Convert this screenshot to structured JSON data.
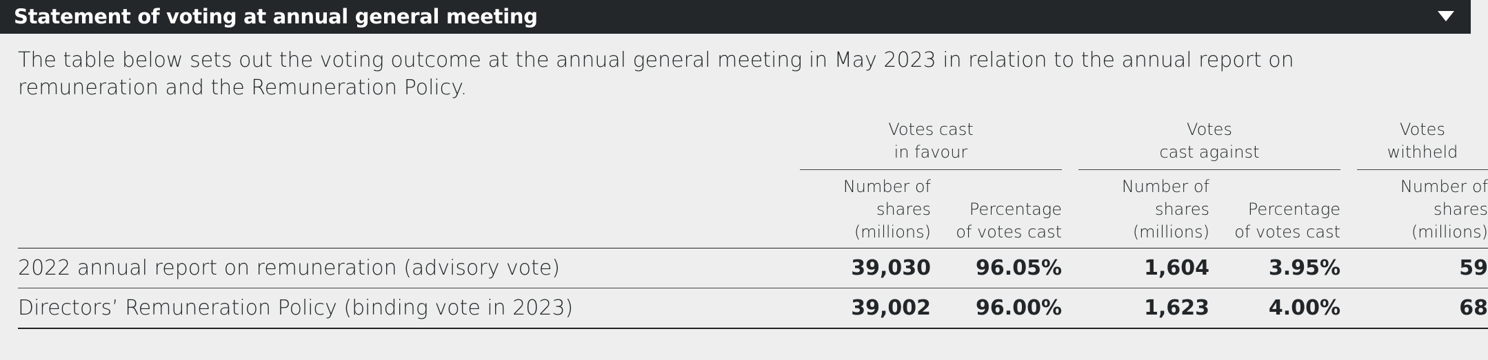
{
  "header": {
    "title": "Statement of voting at annual general meeting",
    "toggle_icon": "chevron-down-icon"
  },
  "intro": "The table below sets out the voting outcome at the annual general meeting in May 2023 in relation to the annual report on remuneration and the Remuneration Policy.",
  "table": {
    "groups": [
      {
        "line1": "Votes cast",
        "line2": "in favour"
      },
      {
        "line1": "Votes",
        "line2": "cast against"
      },
      {
        "line1": "Votes",
        "line2": "withheld"
      }
    ],
    "subheaders": [
      {
        "l1": "Number of",
        "l2": "shares",
        "l3": "(millions)"
      },
      {
        "l1": "",
        "l2": "Percentage",
        "l3": "of votes cast"
      },
      {
        "l1": "Number of",
        "l2": "shares",
        "l3": "(millions)"
      },
      {
        "l1": "",
        "l2": "Percentage",
        "l3": "of votes cast"
      },
      {
        "l1": "Number of",
        "l2": "shares",
        "l3": "(millions)"
      }
    ],
    "rows": [
      {
        "label": "2022 annual report on remuneration (advisory vote)",
        "for_shares": "39,030",
        "for_pct": "96.05%",
        "against_shares": "1,604",
        "against_pct": "3.95%",
        "withheld": "59"
      },
      {
        "label": "Directors’ Remuneration Policy (binding vote in 2023)",
        "for_shares": "39,002",
        "for_pct": "96.00%",
        "against_shares": "1,623",
        "against_pct": "4.00%",
        "withheld": "68"
      }
    ]
  }
}
